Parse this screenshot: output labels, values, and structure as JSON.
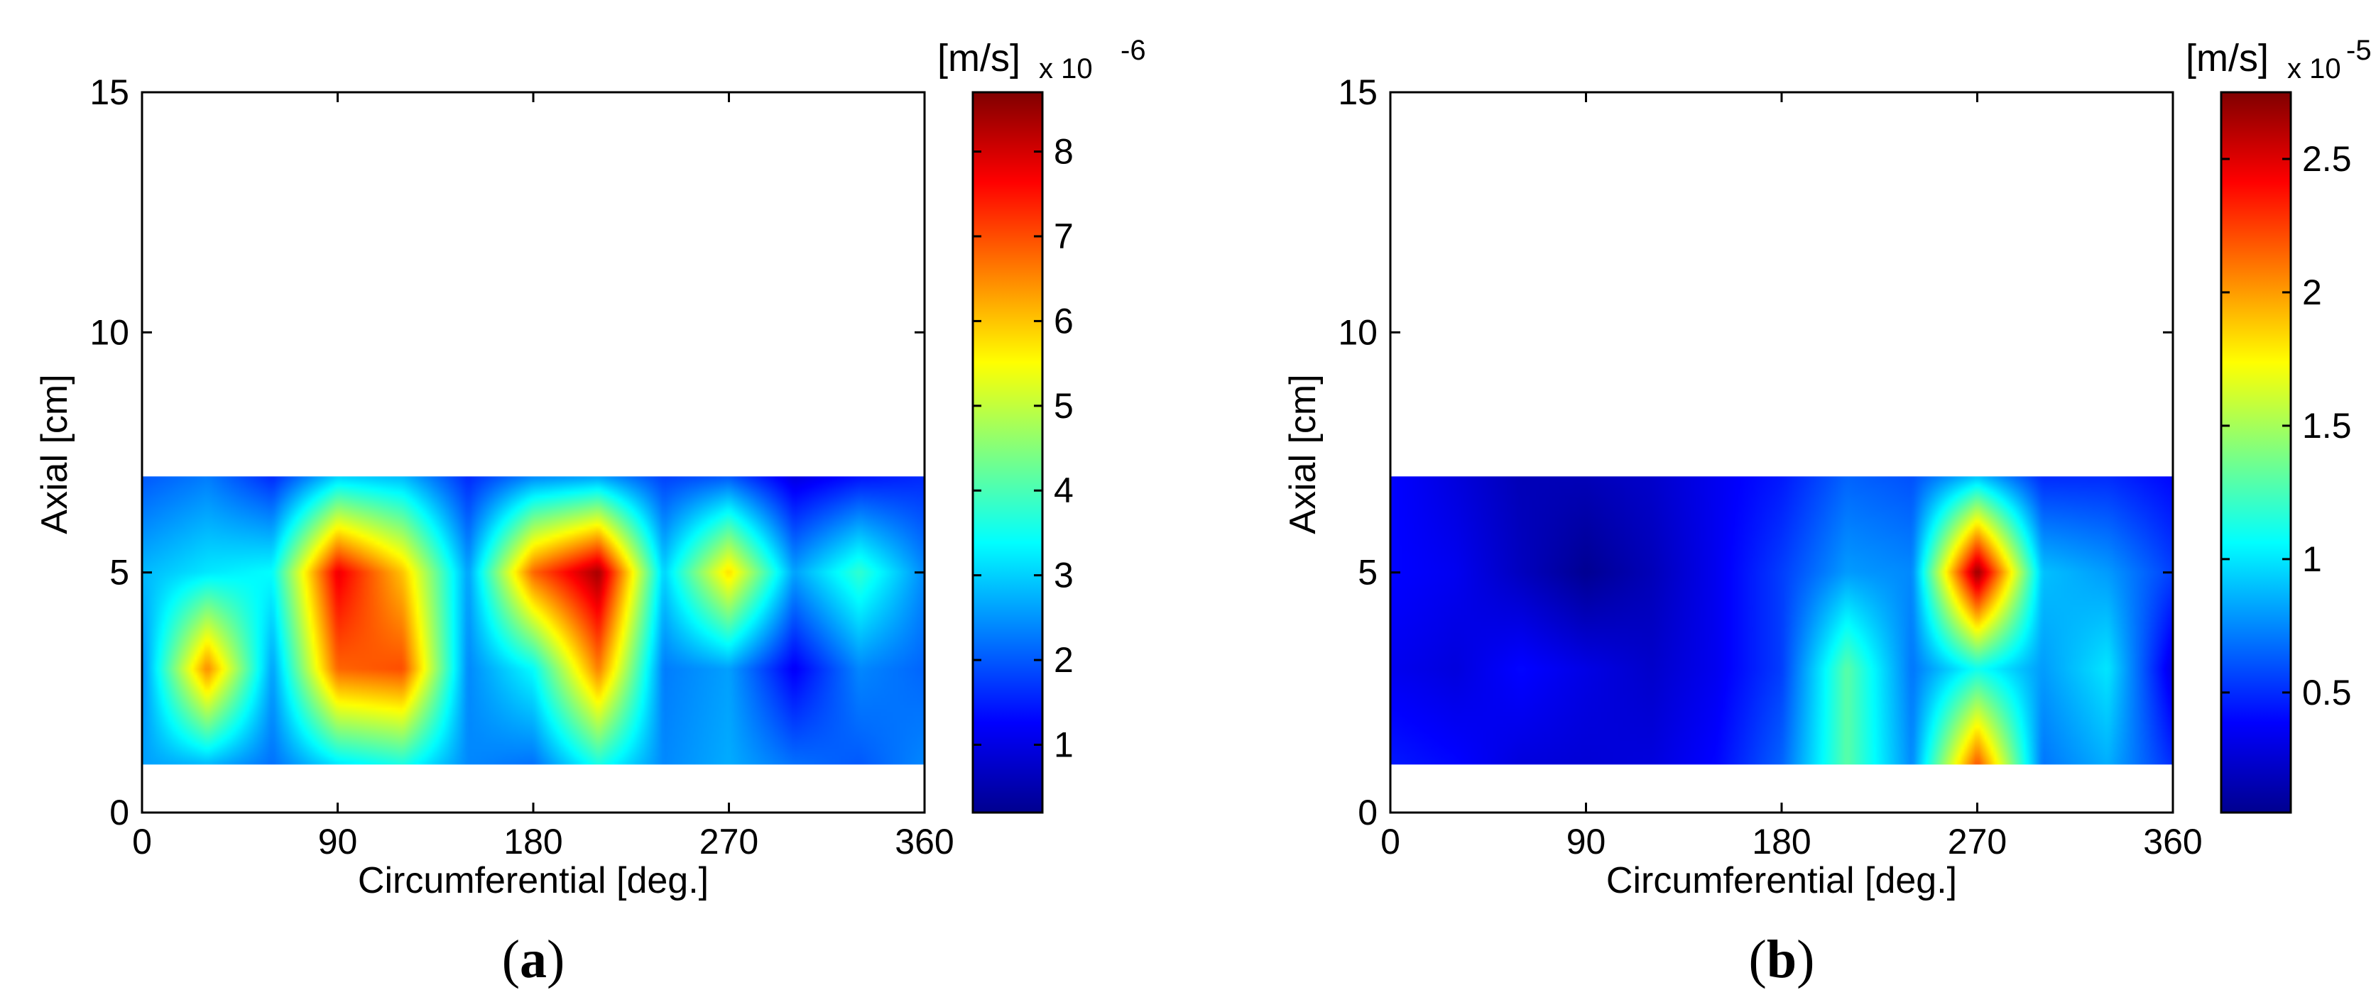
{
  "chart_data": [
    {
      "type": "heatmap",
      "caption_open": "(",
      "caption_letter": "a",
      "caption_close": ")",
      "xlabel": "Circumferential [deg.]",
      "ylabel": "Axial [cm]",
      "xlim": [
        0,
        360
      ],
      "ylim": [
        0,
        15
      ],
      "x_ticks": [
        "0",
        "90",
        "180",
        "270",
        "360"
      ],
      "y_ticks": [
        "0",
        "5",
        "10",
        "15"
      ],
      "data_y_range": [
        1,
        7
      ],
      "colorbar": {
        "unit": "[m/s]",
        "multiplier": "x 10",
        "exponent": "-6",
        "range": [
          0.2,
          8.7
        ],
        "ticks": [
          "1",
          "2",
          "3",
          "4",
          "5",
          "6",
          "7",
          "8"
        ]
      },
      "grid": false,
      "x": [
        0,
        30,
        60,
        90,
        120,
        150,
        180,
        210,
        240,
        270,
        300,
        330,
        360
      ],
      "y": [
        1,
        3,
        5,
        7
      ],
      "z": [
        [
          2.6,
          2.8,
          2.2,
          3.2,
          3.6,
          2.4,
          2.2,
          3.6,
          2.4,
          2.7,
          2.2,
          2.0,
          2.4
        ],
        [
          2.4,
          6.5,
          2.6,
          6.8,
          7.0,
          2.4,
          3.4,
          6.6,
          2.3,
          2.6,
          1.2,
          2.4,
          2.1
        ],
        [
          2.8,
          3.2,
          3.4,
          7.8,
          6.0,
          2.6,
          6.8,
          8.4,
          3.0,
          5.8,
          2.6,
          3.8,
          2.4
        ],
        [
          2.0,
          2.3,
          1.6,
          3.0,
          2.8,
          1.6,
          2.4,
          2.6,
          1.8,
          2.0,
          1.0,
          1.4,
          1.6
        ]
      ]
    },
    {
      "type": "heatmap",
      "caption_open": "(",
      "caption_letter": "b",
      "caption_close": ")",
      "xlabel": "Circumferential [deg.]",
      "ylabel": "Axial [cm]",
      "xlim": [
        0,
        360
      ],
      "ylim": [
        0,
        15
      ],
      "x_ticks": [
        "0",
        "90",
        "180",
        "270",
        "360"
      ],
      "y_ticks": [
        "0",
        "5",
        "10",
        "15"
      ],
      "data_y_range": [
        1,
        7
      ],
      "colorbar": {
        "unit": "[m/s]",
        "multiplier": "x 10",
        "exponent": "-5",
        "range": [
          0.05,
          2.75
        ],
        "ticks": [
          "0.5",
          "1",
          "1.5",
          "2",
          "2.5"
        ]
      },
      "grid": false,
      "x": [
        0,
        30,
        60,
        90,
        120,
        150,
        180,
        210,
        240,
        270,
        300,
        330,
        360
      ],
      "y": [
        1,
        3,
        5,
        7
      ],
      "z": [
        [
          0.45,
          0.4,
          0.3,
          0.28,
          0.3,
          0.4,
          0.65,
          1.3,
          0.75,
          2.2,
          0.7,
          0.85,
          0.5
        ],
        [
          0.35,
          0.3,
          0.4,
          0.32,
          0.25,
          0.35,
          0.55,
          1.3,
          0.7,
          1.1,
          0.8,
          1.0,
          0.3
        ],
        [
          0.4,
          0.35,
          0.22,
          0.1,
          0.2,
          0.35,
          0.55,
          0.8,
          0.75,
          2.7,
          0.9,
          0.8,
          0.55
        ],
        [
          0.4,
          0.3,
          0.2,
          0.2,
          0.25,
          0.35,
          0.45,
          0.65,
          0.6,
          0.9,
          0.5,
          0.5,
          0.4
        ]
      ]
    }
  ]
}
